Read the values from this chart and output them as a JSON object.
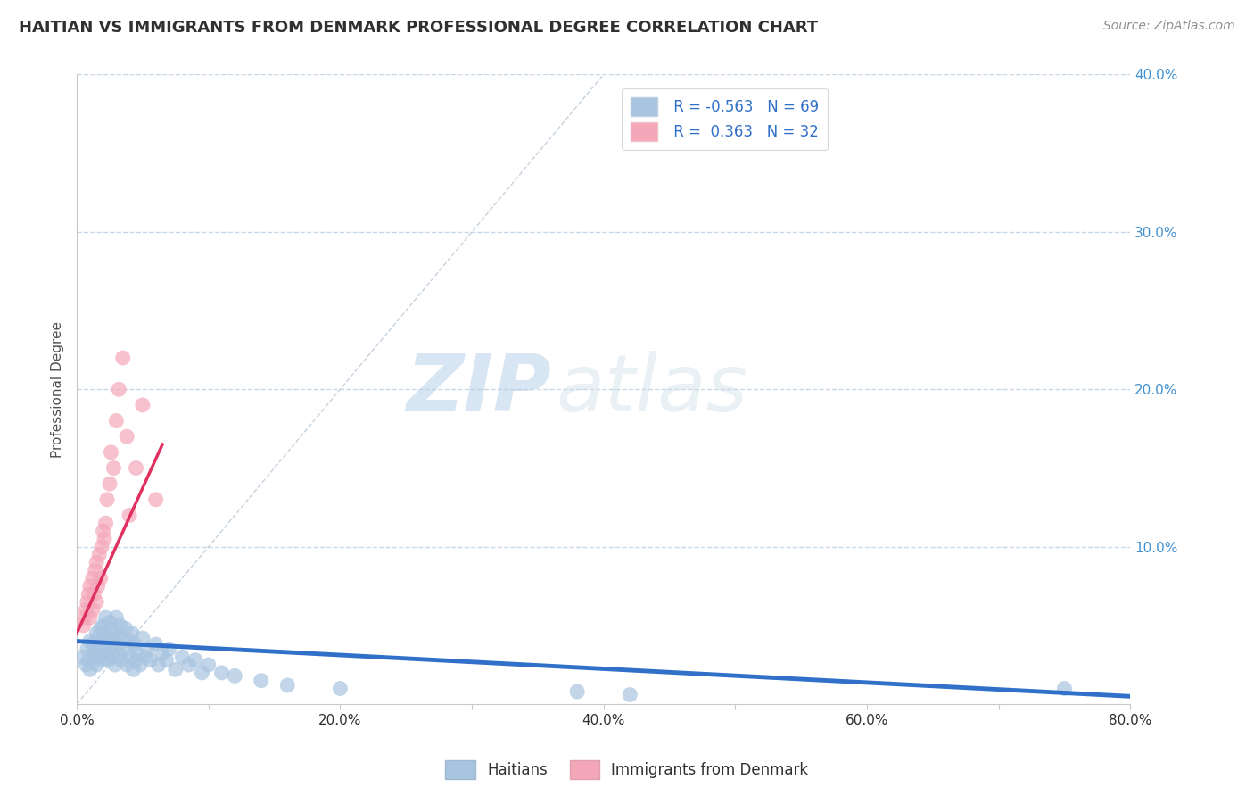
{
  "title": "HAITIAN VS IMMIGRANTS FROM DENMARK PROFESSIONAL DEGREE CORRELATION CHART",
  "source_text": "Source: ZipAtlas.com",
  "ylabel": "Professional Degree",
  "watermark_zip": "ZIP",
  "watermark_atlas": "atlas",
  "xlim": [
    0.0,
    0.8
  ],
  "ylim": [
    0.0,
    0.4
  ],
  "xticks": [
    0.0,
    0.1,
    0.2,
    0.3,
    0.4,
    0.5,
    0.6,
    0.7,
    0.8
  ],
  "yticks": [
    0.0,
    0.1,
    0.2,
    0.3,
    0.4
  ],
  "ytick_labels_right": [
    "",
    "10.0%",
    "20.0%",
    "30.0%",
    "40.0%"
  ],
  "xtick_labels": [
    "0.0%",
    "",
    "20.0%",
    "",
    "40.0%",
    "",
    "60.0%",
    "",
    "80.0%"
  ],
  "legend_r1": "R = -0.563",
  "legend_n1": "N = 69",
  "legend_r2": "R =  0.363",
  "legend_n2": "N = 32",
  "blue_color": "#a8c4e0",
  "pink_color": "#f4a7b9",
  "blue_line_color": "#3070c8",
  "pink_line_color": "#e03060",
  "grid_color": "#c8d8e8",
  "background_color": "#ffffff",
  "title_color": "#303030",
  "axis_label_color": "#505050",
  "tick_color_right": "#4090d0",
  "tick_color_x": "#303030",
  "blue_scatter_x": [
    0.005,
    0.007,
    0.008,
    0.009,
    0.01,
    0.01,
    0.012,
    0.013,
    0.015,
    0.015,
    0.016,
    0.017,
    0.018,
    0.018,
    0.019,
    0.02,
    0.02,
    0.021,
    0.022,
    0.022,
    0.023,
    0.024,
    0.025,
    0.025,
    0.026,
    0.027,
    0.028,
    0.029,
    0.03,
    0.03,
    0.031,
    0.032,
    0.033,
    0.034,
    0.035,
    0.036,
    0.037,
    0.038,
    0.04,
    0.041,
    0.042,
    0.043,
    0.044,
    0.045,
    0.046,
    0.048,
    0.05,
    0.052,
    0.054,
    0.056,
    0.06,
    0.062,
    0.065,
    0.068,
    0.07,
    0.075,
    0.08,
    0.085,
    0.09,
    0.095,
    0.1,
    0.11,
    0.12,
    0.14,
    0.16,
    0.2,
    0.38,
    0.42,
    0.75
  ],
  "blue_scatter_y": [
    0.03,
    0.025,
    0.035,
    0.028,
    0.04,
    0.022,
    0.038,
    0.032,
    0.045,
    0.025,
    0.042,
    0.03,
    0.048,
    0.035,
    0.028,
    0.05,
    0.038,
    0.045,
    0.032,
    0.055,
    0.04,
    0.028,
    0.052,
    0.035,
    0.048,
    0.03,
    0.042,
    0.025,
    0.055,
    0.038,
    0.045,
    0.032,
    0.05,
    0.028,
    0.042,
    0.035,
    0.048,
    0.025,
    0.04,
    0.03,
    0.045,
    0.022,
    0.038,
    0.028,
    0.032,
    0.025,
    0.042,
    0.03,
    0.035,
    0.028,
    0.038,
    0.025,
    0.032,
    0.028,
    0.035,
    0.022,
    0.03,
    0.025,
    0.028,
    0.02,
    0.025,
    0.02,
    0.018,
    0.015,
    0.012,
    0.01,
    0.008,
    0.006,
    0.01
  ],
  "pink_scatter_x": [
    0.005,
    0.006,
    0.007,
    0.008,
    0.009,
    0.01,
    0.01,
    0.012,
    0.012,
    0.013,
    0.014,
    0.015,
    0.015,
    0.016,
    0.017,
    0.018,
    0.019,
    0.02,
    0.021,
    0.022,
    0.023,
    0.025,
    0.026,
    0.028,
    0.03,
    0.032,
    0.035,
    0.038,
    0.04,
    0.045,
    0.05,
    0.06
  ],
  "pink_scatter_y": [
    0.05,
    0.055,
    0.06,
    0.065,
    0.07,
    0.055,
    0.075,
    0.06,
    0.08,
    0.07,
    0.085,
    0.065,
    0.09,
    0.075,
    0.095,
    0.08,
    0.1,
    0.11,
    0.105,
    0.115,
    0.13,
    0.14,
    0.16,
    0.15,
    0.18,
    0.2,
    0.22,
    0.17,
    0.12,
    0.15,
    0.19,
    0.13
  ],
  "blue_trend_x": [
    0.0,
    0.8
  ],
  "blue_trend_y": [
    0.04,
    0.005
  ],
  "pink_trend_x": [
    0.0,
    0.065
  ],
  "pink_trend_y": [
    0.045,
    0.165
  ],
  "diag_line_x": [
    0.0,
    0.4
  ],
  "diag_line_y": [
    0.0,
    0.4
  ]
}
